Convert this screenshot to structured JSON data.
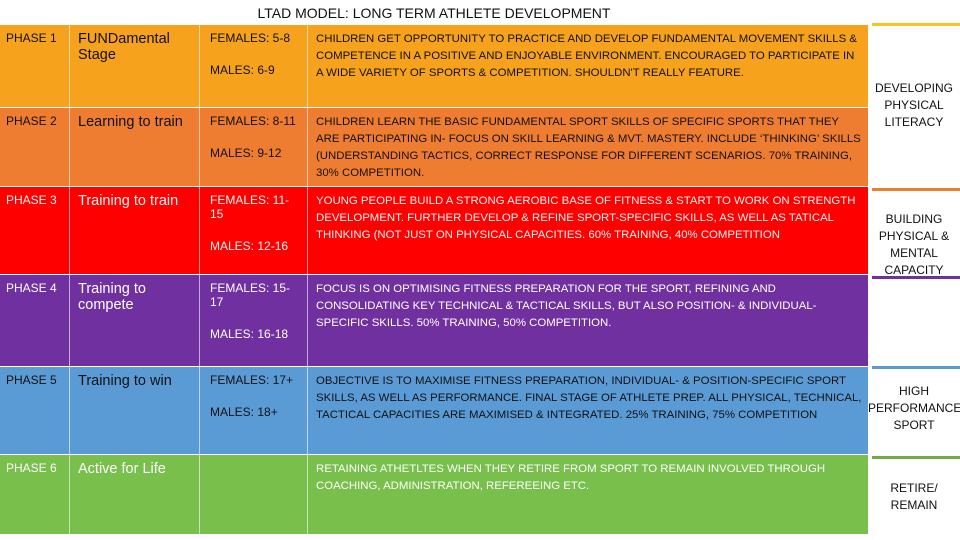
{
  "title": "LTAD MODEL: LONG TERM ATHLETE DEVELOPMENT",
  "rows": [
    {
      "phase": "PHASE 1",
      "stage": "FUNDamental Stage",
      "ages": [
        "FEMALES: 5-8",
        "MALES: 6-9"
      ],
      "description": "CHILDREN GET OPPORTUNITY TO PRACTICE AND DEVELOP FUNDAMENTAL MOVEMENT SKILLS & COMPETENCE IN A POSITIVE AND ENJOYABLE ENVIRONMENT. ENCOURAGED TO PARTICIPATE IN A WIDE VARIETY OF SPORTS & COMPETITION. SHOULDN'T REALLY FEATURE."
    },
    {
      "phase": "PHASE 2",
      "stage": "Learning to train",
      "ages": [
        "FEMALES: 8-11",
        "MALES: 9-12"
      ],
      "description": "CHILDREN LEARN THE BASIC FUNDAMENTAL SPORT SKILLS OF SPECIFIC SPORTS THAT THEY ARE PARTICIPATING IN- FOCUS ON SKILL LEARNING & MVT. MASTERY. INCLUDE ‘THINKING’ SKILLS (UNDERSTANDING TACTICS, CORRECT RESPONSE FOR DIFFERENT SCENARIOS. 70% TRAINING, 30% COMPETITION."
    },
    {
      "phase": "PHASE 3",
      "stage": "Training to train",
      "ages": [
        "FEMALES: 11-15",
        "MALES: 12-16"
      ],
      "description": "YOUNG PEOPLE BUILD A STRONG AEROBIC BASE OF FITNESS & START TO WORK ON STRENGTH DEVELOPMENT. FURTHER DEVELOP & REFINE SPORT-SPECIFIC SKILLS, AS WELL AS TATICAL THINKING (NOT JUST ON PHYSICAL CAPACITIES. 60% TRAINING, 40% COMPETITION"
    },
    {
      "phase": "PHASE 4",
      "stage": "Training to compete",
      "ages": [
        "FEMALES: 15-17",
        "MALES: 16-18"
      ],
      "description": "FOCUS IS ON OPTIMISING FITNESS PREPARATION FOR THE SPORT, REFINING AND CONSOLIDATING KEY TECHNICAL & TACTICAL SKILLS, BUT ALSO POSITION- & INDIVIDUAL-SPECIFIC SKILLS. 50% TRAINING, 50% COMPETITION."
    },
    {
      "phase": "PHASE 5",
      "stage": "Training to win",
      "ages": [
        "FEMALES: 17+",
        "MALES: 18+"
      ],
      "description": "OBJECTIVE IS TO MAXIMISE FITNESS PREPARATION, INDIVIDUAL- & POSITION-SPECIFIC SPORT SKILLS, AS WELL AS PERFORMANCE. FINAL STAGE OF ATHLETE PREP. ALL PHYSICAL, TECHNICAL, TACTICAL CAPACITIES ARE MAXIMISED & INTEGRATED. 25% TRAINING, 75% COMPETITION"
    },
    {
      "phase": "PHASE 6",
      "stage": "Active for Life",
      "ages": [],
      "description": "RETAINING ATHETLTES WHEN THEY RETIRE FROM SPORT TO REMAIN INVOLVED THROUGH COACHING, ADMINISTRATION, REFEREEING ETC."
    }
  ],
  "side_labels": [
    "DEVELOPING PHYSICAL LITERACY",
    "BUILDING PHYSICAL & MENTAL CAPACITY",
    "HIGH PERFORMANCE SPORT",
    "RETIRE/ REMAIN"
  ]
}
